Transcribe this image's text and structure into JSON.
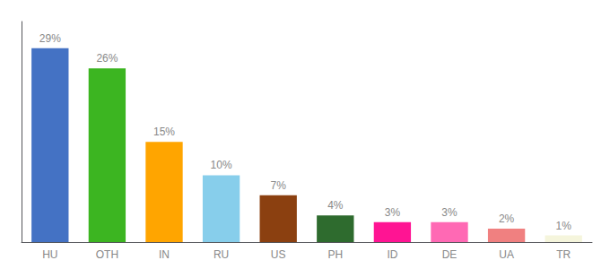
{
  "chart_data": {
    "type": "bar",
    "categories": [
      "HU",
      "OTH",
      "IN",
      "RU",
      "US",
      "PH",
      "ID",
      "DE",
      "UA",
      "TR"
    ],
    "values": [
      29,
      26,
      15,
      10,
      7,
      4,
      3,
      3,
      2,
      1
    ],
    "value_labels": [
      "29%",
      "26%",
      "15%",
      "10%",
      "7%",
      "4%",
      "3%",
      "3%",
      "2%",
      "1%"
    ],
    "colors": [
      "#4472c4",
      "#3cb521",
      "#ffa500",
      "#87ceeb",
      "#8b4010",
      "#2e6b2e",
      "#ff1493",
      "#ff69b4",
      "#f08080",
      "#f5f5dc"
    ],
    "ylim": [
      0,
      33
    ],
    "grid": false,
    "data_labels": true,
    "tick_labels": "x"
  }
}
